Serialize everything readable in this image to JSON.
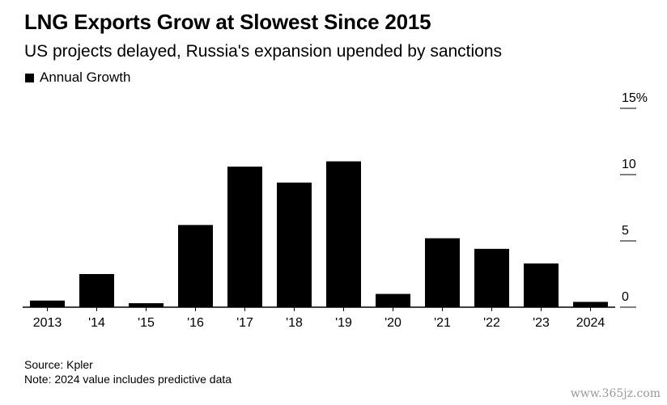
{
  "title": "LNG Exports Grow at Slowest Since 2015",
  "subtitle": "US projects delayed, Russia's expansion upended by sanctions",
  "legend": {
    "label": "Annual Growth",
    "color": "#000000"
  },
  "source": "Source: Kpler",
  "note": "Note: 2024 value includes predictive data",
  "watermark": "www.365jz.com",
  "chart_data": {
    "type": "bar",
    "title": "LNG Exports Grow at Slowest Since 2015",
    "subtitle": "US projects delayed, Russia's expansion upended by sanctions",
    "categories": [
      "2013",
      "'14",
      "'15",
      "'16",
      "'17",
      "'18",
      "'19",
      "'20",
      "'21",
      "'22",
      "'23",
      "2024"
    ],
    "series": [
      {
        "name": "Annual Growth",
        "values": [
          0.5,
          2.5,
          0.3,
          6.2,
          10.6,
          9.4,
          11.0,
          1.0,
          5.2,
          4.4,
          3.3,
          0.4
        ]
      }
    ],
    "ylim": [
      0,
      15
    ],
    "yticks": [
      0,
      5,
      10,
      15
    ],
    "ytick_labels": [
      "0",
      "5",
      "10",
      "15%"
    ],
    "yaxis_position": "right",
    "grid": false,
    "bar_color": "#000000"
  }
}
